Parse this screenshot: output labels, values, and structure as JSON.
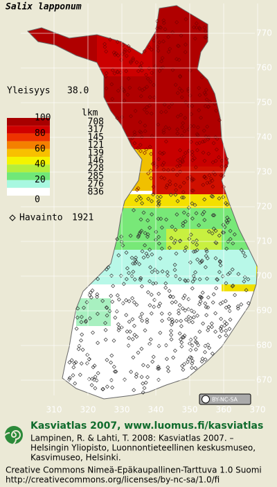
{
  "title": "Salix lapponum",
  "frequency": {
    "label": "Yleisyys",
    "value": "38.0"
  },
  "legend": {
    "scale_labels": [
      "100",
      "80",
      "60",
      "40",
      "20",
      "0"
    ],
    "count_header": "lkm",
    "counts": [
      "708",
      "317",
      "145",
      "121",
      "139",
      "146",
      "228",
      "285",
      "276",
      "836"
    ],
    "colors": [
      "#a80000",
      "#d00000",
      "#ee3300",
      "#f48000",
      "#f8c000",
      "#f4f400",
      "#b4ee3c",
      "#70e878",
      "#a8f8e0",
      "#ffffff"
    ]
  },
  "observations": {
    "label": "Havainto",
    "value": "1921"
  },
  "grid": {
    "x_labels": [
      310,
      320,
      330,
      340,
      350,
      360,
      370
    ],
    "y_labels": [
      770,
      760,
      750,
      740,
      730,
      720,
      710,
      700,
      690,
      680,
      670
    ]
  },
  "badge": "BY-NC-SA",
  "footer": {
    "heading": "Kasviatlas 2007, www.luomus.fi/kasviatlas",
    "citation": [
      "Lampinen, R. & Lahti, T. 2008: Kasviatlas 2007. –",
      "Helsingin Yliopisto, Luonnontieteellinen keskusmuseo,",
      "Kasvimuseo, Helsinki."
    ],
    "license": [
      "Creative Commons Nimeä-Epäkaupallinen-Tarttuva 1.0 Suomi",
      "http://creativecommons.org/licenses/by-nc-sa/1.0/fi"
    ]
  }
}
